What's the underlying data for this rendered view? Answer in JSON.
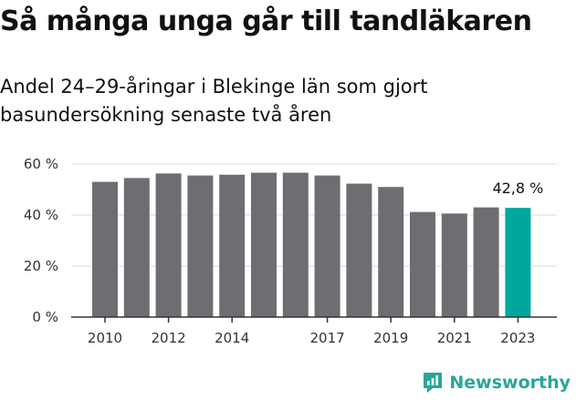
{
  "title": "Så många unga går till tandläkaren",
  "subtitle": "Andel 24–29-åringar i Blekinge län som gjort basundersökning senaste två åren",
  "brand": {
    "name": "Newsworthy",
    "icon": "newsworthy-logo-icon"
  },
  "colors": {
    "bar": "#6e6d72",
    "highlight": "#00a79d",
    "grid": "#d9d9d9",
    "axis": "#333333"
  },
  "chart_data": {
    "type": "bar",
    "categories": [
      "2010",
      "2011",
      "2012",
      "2013",
      "2014",
      "2015",
      "2016",
      "2017",
      "2018",
      "2019",
      "2020",
      "2021",
      "2022",
      "2023"
    ],
    "series": [
      {
        "values": [
          53.0,
          54.5,
          56.3,
          55.5,
          55.8,
          56.6,
          56.6,
          55.5,
          52.3,
          51.0,
          41.2,
          40.6,
          43.0,
          42.8
        ]
      }
    ],
    "xtick_labels": [
      "2010",
      "",
      "2012",
      "",
      "2014",
      "",
      "",
      "2017",
      "",
      "2019",
      "",
      "2021",
      "",
      "2023"
    ],
    "yticks": [
      0,
      20,
      40,
      60
    ],
    "ytick_labels": [
      "0 %",
      "20 %",
      "40 %",
      "60 %"
    ],
    "ylim": [
      0,
      60
    ],
    "highlight_index": 13,
    "annotations": [
      {
        "index": 13,
        "text": "42,8 %"
      }
    ],
    "xlabel": "",
    "ylabel": "",
    "grid": true,
    "legend": "none"
  }
}
